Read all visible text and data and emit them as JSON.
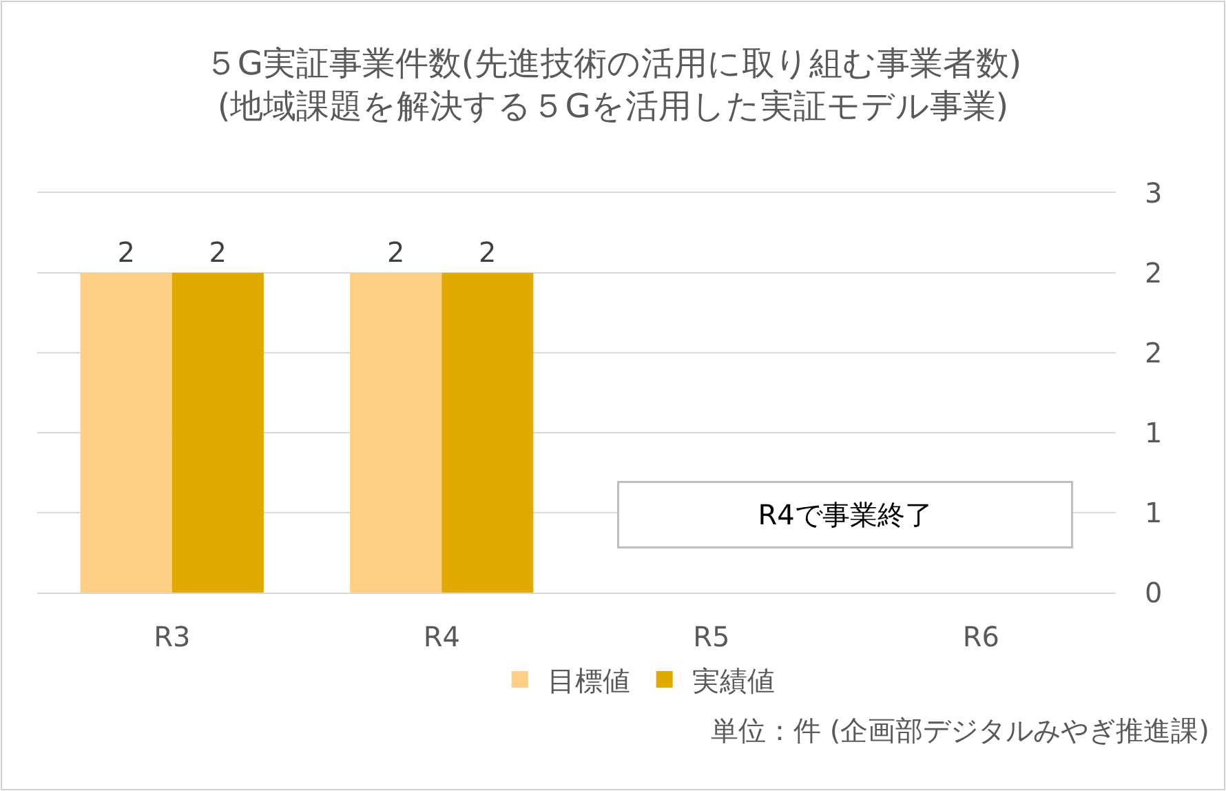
{
  "chart_data": {
    "type": "bar",
    "title": "５G実証事業件数(先進技術の活用に取り組む事業者数)\n(地域課題を解決する５Gを活用した実証モデル事業)",
    "categories": [
      "R3",
      "R4",
      "R5",
      "R6"
    ],
    "series": [
      {
        "name": "目標値",
        "color": "#fdd086",
        "values": [
          2,
          2,
          null,
          null
        ]
      },
      {
        "name": "実績値",
        "color": "#e0aa00",
        "values": [
          2,
          2,
          null,
          null
        ]
      }
    ],
    "ylim": [
      0,
      2.5
    ],
    "yticks": [
      0,
      {
        "value": 0.5,
        "label": "1"
      },
      1,
      {
        "value": 1.5,
        "label": "2"
      },
      2,
      {
        "value": 2.5,
        "label": "3"
      }
    ],
    "grid": "y",
    "legend": "bottom",
    "data_labels": true,
    "annotations": [
      "R4で事業終了",
      "単位：件 (企画部デジタルみやぎ推進課)"
    ]
  }
}
